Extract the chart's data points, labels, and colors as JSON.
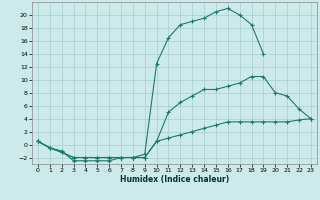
{
  "title": "",
  "xlabel": "Humidex (Indice chaleur)",
  "x_values": [
    0,
    1,
    2,
    3,
    4,
    5,
    6,
    7,
    8,
    9,
    10,
    11,
    12,
    13,
    14,
    15,
    16,
    17,
    18,
    19,
    20,
    21,
    22,
    23
  ],
  "line_max": [
    0.5,
    -0.5,
    -1.0,
    -2.5,
    -2.5,
    -2.5,
    -2.5,
    -2.0,
    -2.0,
    -1.5,
    12.5,
    16.5,
    18.5,
    19.0,
    19.5,
    20.5,
    21.0,
    20.0,
    18.5,
    14.0,
    null,
    null,
    null,
    null
  ],
  "line_avg": [
    0.5,
    -0.5,
    -1.2,
    -2.0,
    -2.0,
    -2.0,
    -2.0,
    -2.0,
    -2.0,
    -2.0,
    0.5,
    5.0,
    6.5,
    7.5,
    8.5,
    8.5,
    9.0,
    9.5,
    10.5,
    10.5,
    8.0,
    7.5,
    5.5,
    4.0
  ],
  "line_min": [
    0.5,
    -0.5,
    -1.2,
    -2.0,
    -2.0,
    -2.0,
    -2.0,
    -2.0,
    -2.0,
    -2.0,
    0.5,
    1.0,
    1.5,
    2.0,
    2.5,
    3.0,
    3.5,
    3.5,
    3.5,
    3.5,
    3.5,
    3.5,
    3.8,
    4.0
  ],
  "line_color": "#1a7a6e",
  "bg_color": "#cceaea",
  "grid_color": "#aacccc",
  "ylim": [
    -3,
    22
  ],
  "xlim": [
    -0.5,
    23.5
  ],
  "yticks": [
    -2,
    0,
    2,
    4,
    6,
    8,
    10,
    12,
    14,
    16,
    18,
    20
  ],
  "xticks": [
    0,
    1,
    2,
    3,
    4,
    5,
    6,
    7,
    8,
    9,
    10,
    11,
    12,
    13,
    14,
    15,
    16,
    17,
    18,
    19,
    20,
    21,
    22,
    23
  ]
}
